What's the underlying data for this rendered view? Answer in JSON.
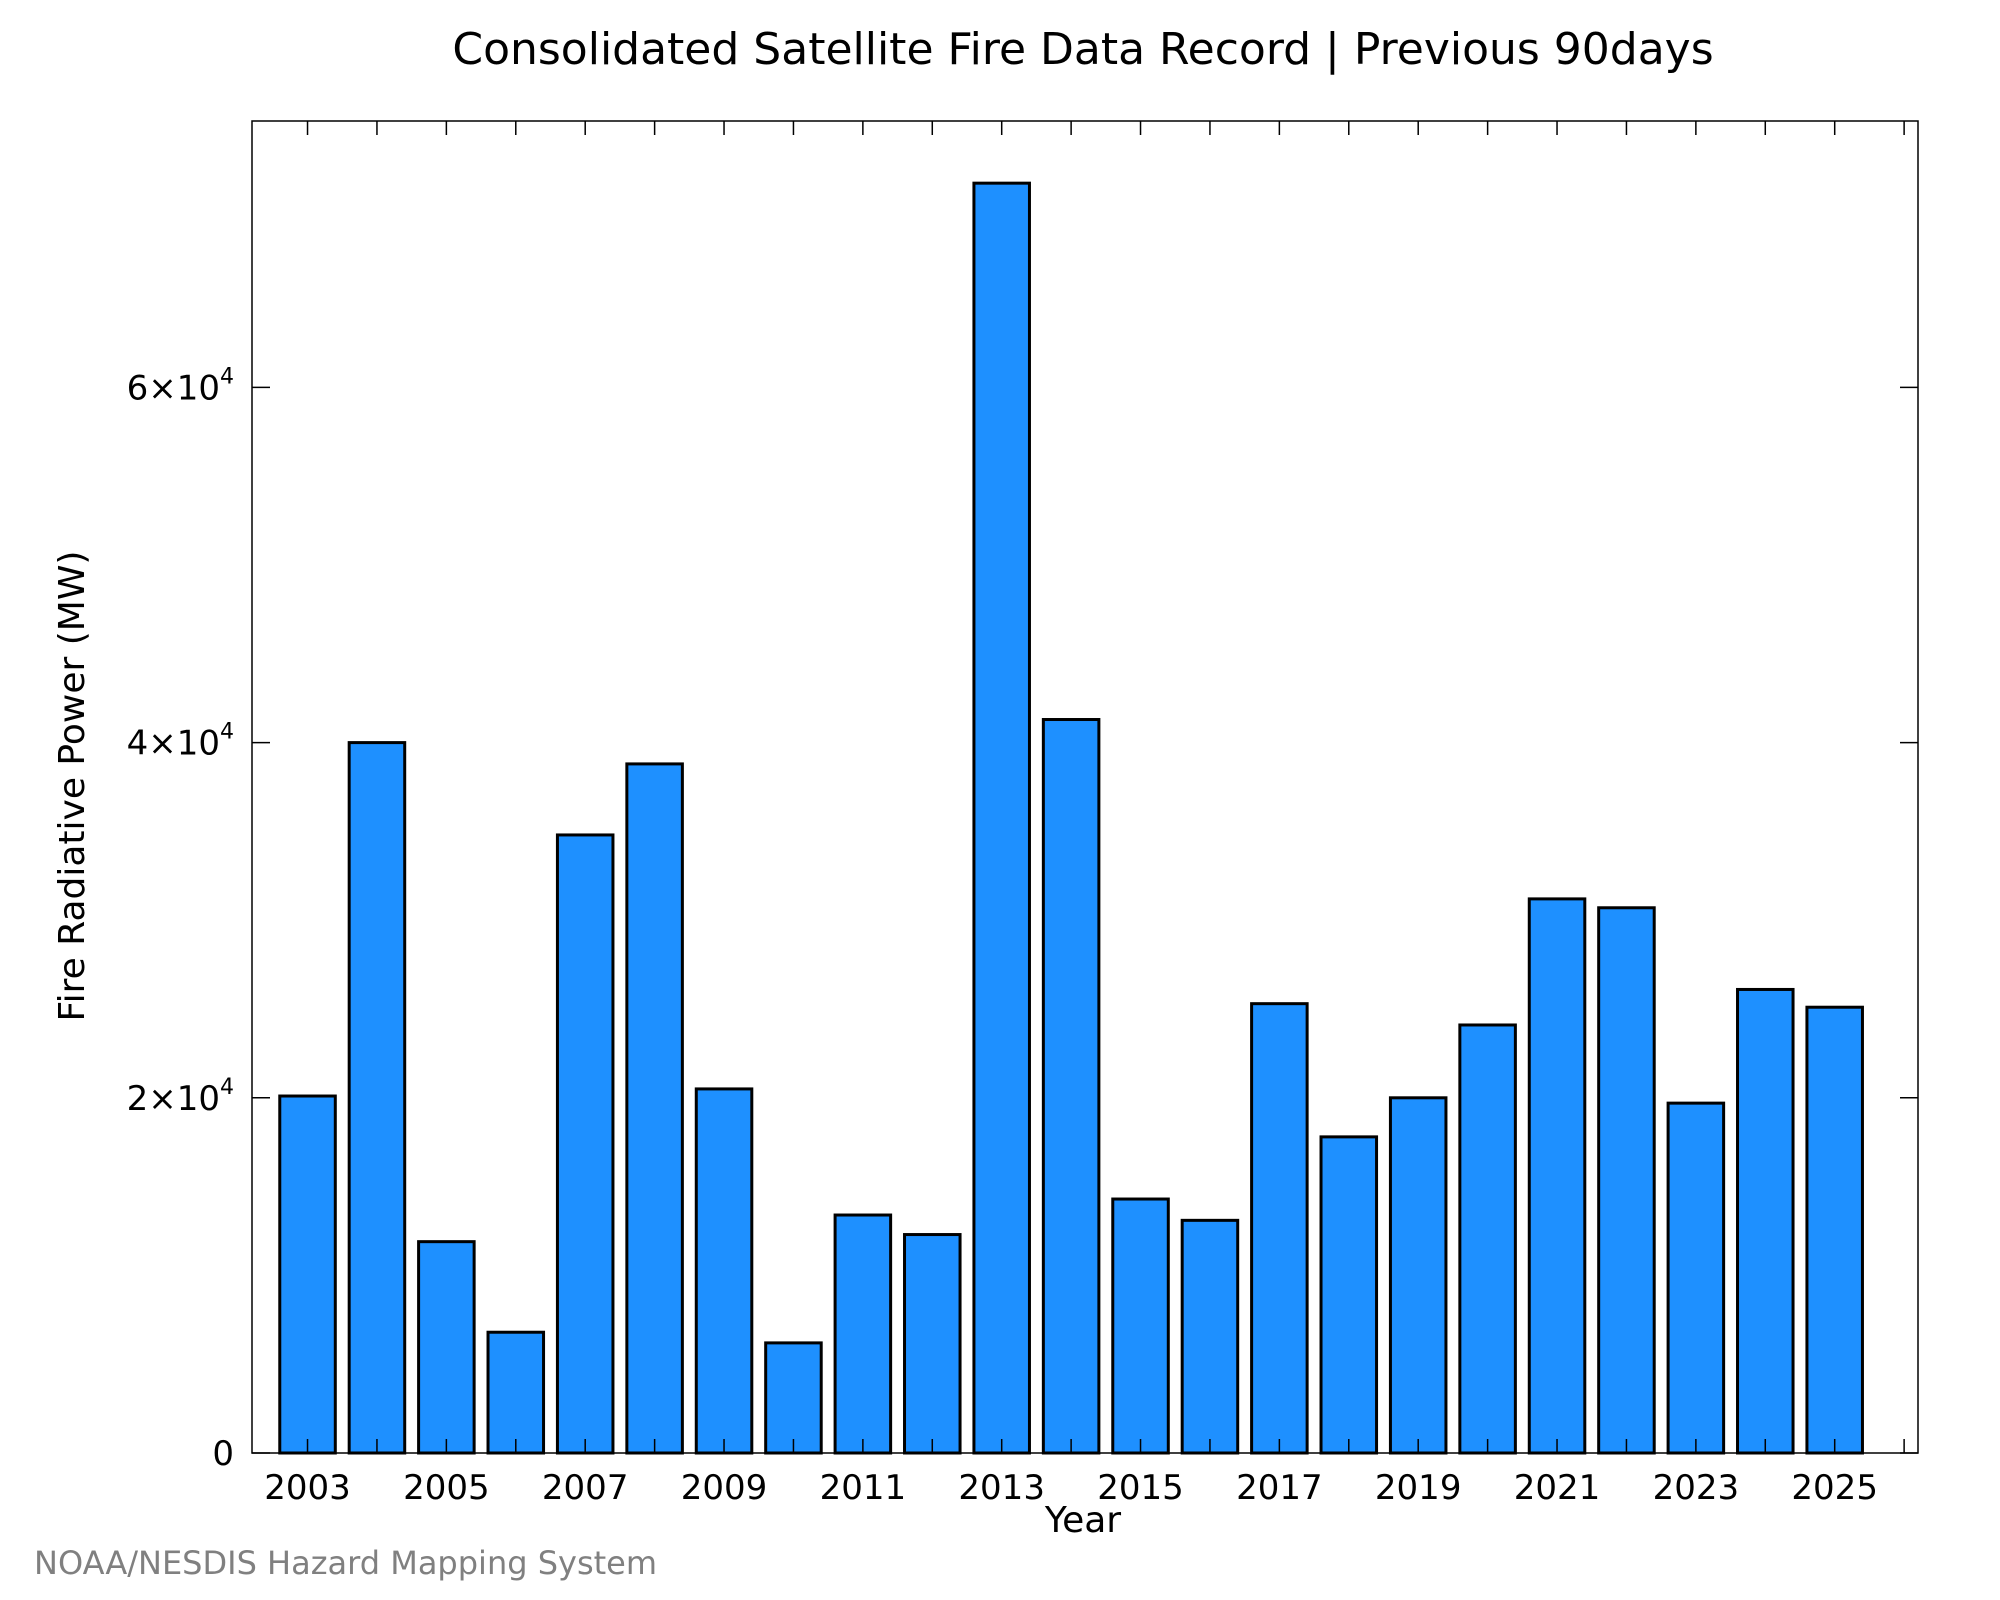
{
  "chart_data": {
    "type": "bar",
    "title": "Consolidated Satellite Fire Data Record | Previous 90days",
    "xlabel": "Year",
    "ylabel": "Fire Radiative Power (MW)",
    "credit": "NOAA/NESDIS Hazard Mapping System",
    "x_range": [
      2002.2,
      2026.2
    ],
    "ylim": [
      0,
      75000
    ],
    "y_ticks": [
      {
        "value": 0,
        "mantissa": "0",
        "exponent": ""
      },
      {
        "value": 20000,
        "mantissa": "2×10",
        "exponent": "4"
      },
      {
        "value": 40000,
        "mantissa": "4×10",
        "exponent": "4"
      },
      {
        "value": 60000,
        "mantissa": "6×10",
        "exponent": "4"
      }
    ],
    "x_labeled_ticks": [
      2003,
      2005,
      2007,
      2009,
      2011,
      2013,
      2015,
      2017,
      2019,
      2021,
      2023,
      2025
    ],
    "x_minor_ticks": [
      2004,
      2006,
      2008,
      2010,
      2012,
      2014,
      2016,
      2018,
      2020,
      2022,
      2024,
      2026
    ],
    "categories": [
      2003,
      2004,
      2005,
      2006,
      2007,
      2008,
      2009,
      2010,
      2011,
      2012,
      2013,
      2014,
      2015,
      2016,
      2017,
      2018,
      2019,
      2020,
      2021,
      2022,
      2023,
      2024,
      2025
    ],
    "values": [
      20100,
      40000,
      11900,
      6800,
      34800,
      38800,
      20500,
      6200,
      13400,
      12300,
      71500,
      41300,
      14300,
      13100,
      25300,
      17800,
      20000,
      24100,
      31200,
      30700,
      19700,
      26100,
      25100
    ],
    "bar_color": "#1e90ff",
    "bar_edge_color": "#000000",
    "grid": false
  }
}
